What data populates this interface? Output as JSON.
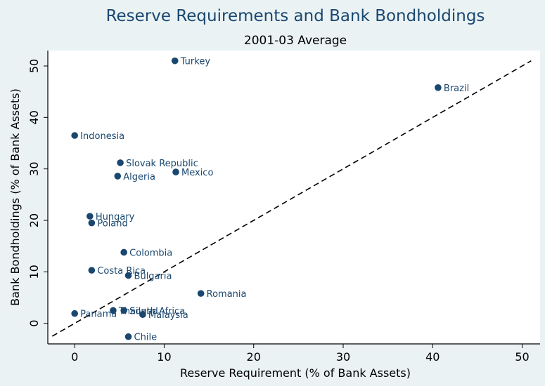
{
  "chart_data": {
    "type": "scatter",
    "title": "Reserve Requirements and Bank Bondholdings",
    "subtitle": "2001-03 Average",
    "xlabel": "Reserve Requirement (% of Bank Assets)",
    "ylabel": "Bank Bondholdings (% of Bank Assets)",
    "xlim": [
      -3,
      52
    ],
    "ylim": [
      -4,
      53
    ],
    "xticks": [
      0,
      10,
      20,
      30,
      40,
      50
    ],
    "yticks": [
      0,
      10,
      20,
      30,
      40,
      50
    ],
    "grid": false,
    "reference_line": {
      "style": "dashed",
      "x": [
        -2.5,
        51
      ],
      "y": [
        -2.5,
        51
      ]
    },
    "colors": {
      "marker": "#1a476f",
      "title": "#1a476f",
      "background": "#eaf2f3",
      "plot_background": "#ffffff"
    },
    "points": [
      {
        "label": "Turkey",
        "x": 11.2,
        "y": 51.0
      },
      {
        "label": "Brazil",
        "x": 40.6,
        "y": 45.8
      },
      {
        "label": "Indonesia",
        "x": 0.0,
        "y": 36.5
      },
      {
        "label": "Slovak Republic",
        "x": 5.1,
        "y": 31.2
      },
      {
        "label": "Mexico",
        "x": 11.3,
        "y": 29.4
      },
      {
        "label": "Algeria",
        "x": 4.8,
        "y": 28.6
      },
      {
        "label": "Hungary",
        "x": 1.7,
        "y": 20.8
      },
      {
        "label": "Poland",
        "x": 1.9,
        "y": 19.5
      },
      {
        "label": "Colombia",
        "x": 5.5,
        "y": 13.8
      },
      {
        "label": "Costa Rica",
        "x": 1.9,
        "y": 10.3
      },
      {
        "label": "Bulgaria",
        "x": 6.0,
        "y": 9.3
      },
      {
        "label": "Romania",
        "x": 14.1,
        "y": 5.8
      },
      {
        "label": "Thailand",
        "x": 4.3,
        "y": 2.5
      },
      {
        "label": "South Africa",
        "x": 5.5,
        "y": 2.5
      },
      {
        "label": "Malaysia",
        "x": 7.6,
        "y": 1.7
      },
      {
        "label": "Panama",
        "x": 0.0,
        "y": 1.9
      },
      {
        "label": "Chile",
        "x": 6.0,
        "y": -2.6
      }
    ]
  }
}
